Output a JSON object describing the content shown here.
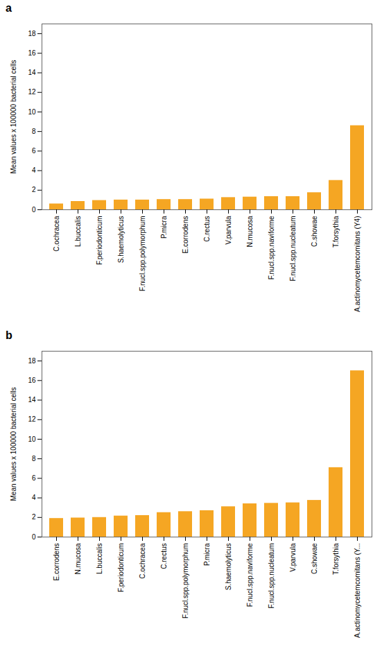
{
  "chart_data": [
    {
      "type": "bar",
      "title": "a",
      "categories": [
        "C.ochracea",
        "L.buccalis",
        "F.periodonticum",
        "S.haemolyticus",
        "F.nucl.spp.polymorphum",
        "P.micra",
        "E.corrodens",
        "C.rectus",
        "V.parvula",
        "N.mucosa",
        "F.nucl.spp.naviforme",
        "F.nucl.spp.nucleatum",
        "C.showae",
        "T.forsythia",
        "A.actinomycetemcomitans (Y4)"
      ],
      "values": [
        0.6,
        0.85,
        0.95,
        1.0,
        1.0,
        1.05,
        1.05,
        1.1,
        1.25,
        1.3,
        1.35,
        1.35,
        1.75,
        3.0,
        8.6
      ],
      "ylabel": "Mean values x 100000 bacterial cells",
      "ylim": [
        0,
        19
      ],
      "yticks": [
        0,
        2,
        4,
        6,
        8,
        10,
        12,
        14,
        16,
        18
      ],
      "color": "#F5A623",
      "grid": false
    },
    {
      "type": "bar",
      "title": "b",
      "categories": [
        "E.corrodens",
        "N.mucosa",
        "L.buccalis",
        "F.periodonticum",
        "C.ochracea",
        "C.rectus",
        "F.nucl.spp.polymorphum",
        "P.micra",
        "S.haemolyticus",
        "F.nucl.spp.naviforme",
        "F.nucl.spp.nucleatum",
        "V.parvula",
        "C.showae",
        "T.forsythia",
        "A.actinomycetemcomitans (Y..."
      ],
      "values": [
        1.9,
        1.95,
        2.0,
        2.15,
        2.2,
        2.5,
        2.6,
        2.7,
        3.1,
        3.4,
        3.45,
        3.5,
        3.75,
        7.1,
        17.0
      ],
      "ylabel": "Mean values x 100000 bacterial cells",
      "ylim": [
        0,
        19
      ],
      "yticks": [
        0,
        2,
        4,
        6,
        8,
        10,
        12,
        14,
        16,
        18
      ],
      "color": "#F5A623",
      "grid": false
    }
  ]
}
